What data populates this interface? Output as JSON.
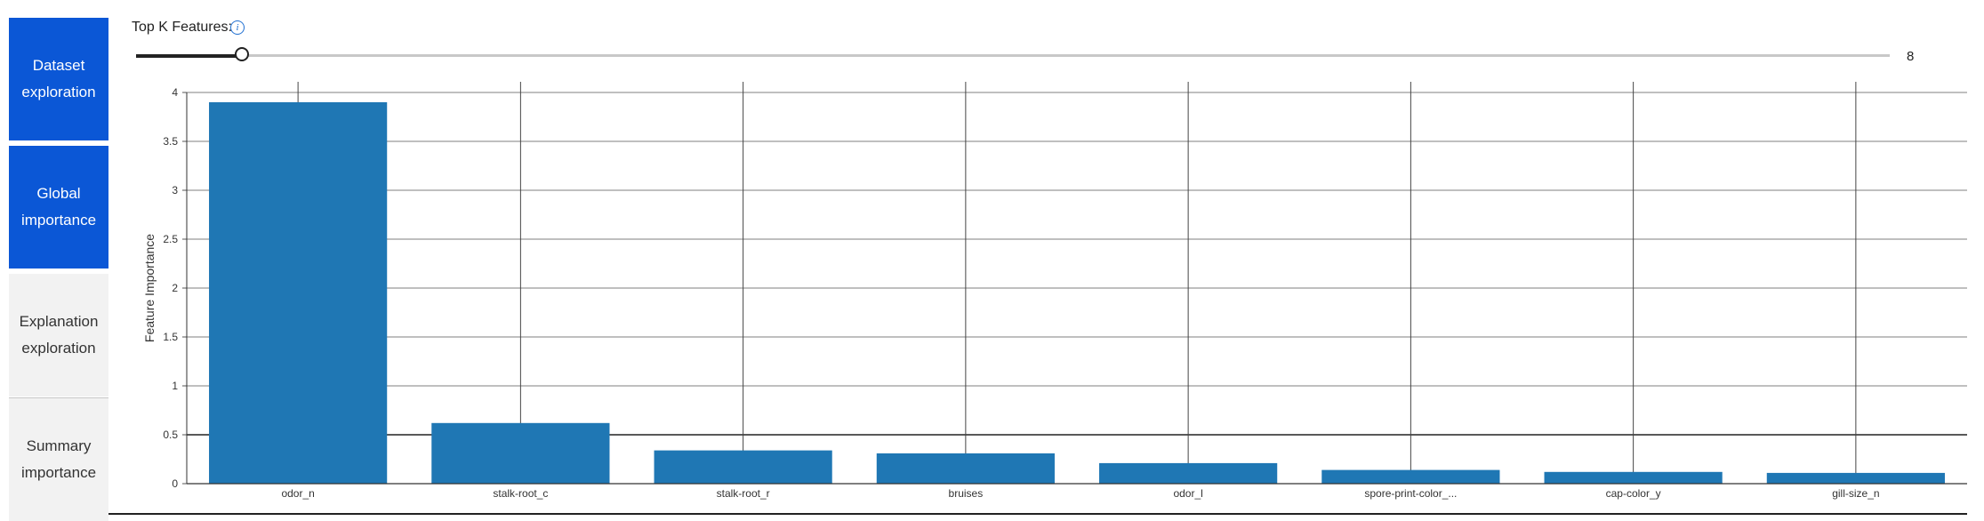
{
  "nav": {
    "items": [
      {
        "label": "Dataset exploration",
        "active": true
      },
      {
        "label": "Global importance",
        "active": true
      },
      {
        "label": "Explanation exploration",
        "active": false
      },
      {
        "label": "Summary importance",
        "active": false
      }
    ]
  },
  "controls": {
    "topk_label": "Top K Features:",
    "info_icon": "info-icon",
    "slider_value": "8",
    "slider_min": 1,
    "slider_max": 117,
    "slider_current": 8
  },
  "colors": {
    "bar": "#1f77b4",
    "nav_active": "#0b57d6",
    "nav_inactive": "#f2f2f2",
    "info": "#1f6fd1"
  },
  "chart_data": {
    "type": "bar",
    "categories": [
      "odor_n",
      "stalk-root_c",
      "stalk-root_r",
      "bruises",
      "odor_l",
      "spore-print-color_...",
      "cap-color_y",
      "gill-size_n"
    ],
    "values": [
      3.9,
      0.62,
      0.34,
      0.31,
      0.21,
      0.14,
      0.12,
      0.11
    ],
    "title": "",
    "xlabel": "",
    "ylabel": "Feature Importance",
    "ylim": [
      0,
      4
    ],
    "yticks": [
      "0",
      "0.5",
      "1",
      "1.5",
      "2",
      "2.5",
      "3",
      "3.5",
      "4"
    ],
    "grid": true,
    "legend": "none"
  }
}
